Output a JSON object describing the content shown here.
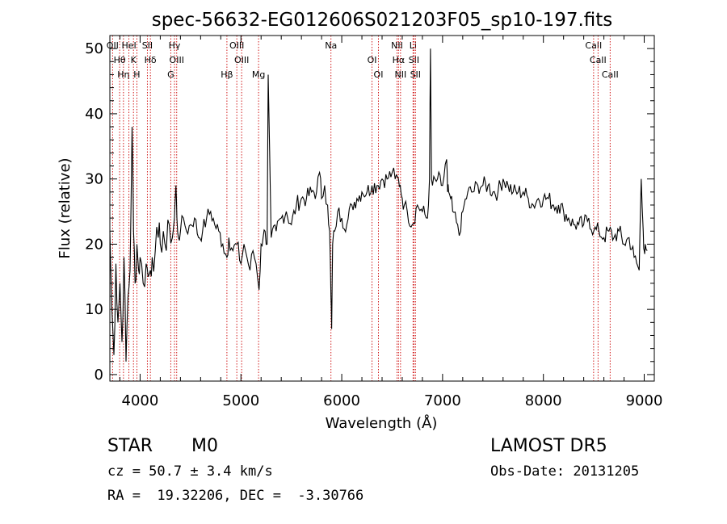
{
  "chart_data": {
    "type": "line",
    "title": "spec-56632-EG012606S021203F05_sp10-197.fits",
    "xlabel": "Wavelength (Å)",
    "ylabel": "Flux (relative)",
    "xlim": [
      3700,
      9100
    ],
    "ylim": [
      -1,
      52
    ],
    "x_ticks": [
      4000,
      5000,
      6000,
      7000,
      8000,
      9000
    ],
    "y_ticks": [
      0,
      10,
      20,
      30,
      40,
      50
    ],
    "grid": false,
    "line_color": "#000000",
    "marker_color": "#cc0000",
    "series": [
      {
        "x": [
          3700,
          3720,
          3740,
          3760,
          3780,
          3800,
          3820,
          3840,
          3860,
          3880,
          3900,
          3920,
          3935,
          3950,
          3968,
          3985,
          4000,
          4030,
          4060,
          4080,
          4102,
          4120,
          4150,
          4180,
          4200,
          4230,
          4260,
          4290,
          4320,
          4340,
          4355,
          4365,
          4380,
          4400,
          4430,
          4460,
          4500,
          4540,
          4580,
          4620,
          4660,
          4700,
          4740,
          4780,
          4820,
          4861,
          4880,
          4920,
          4960,
          5000,
          5030,
          5060,
          5090,
          5120,
          5150,
          5180,
          5200,
          5220,
          5240,
          5260,
          5270,
          5300,
          5350,
          5400,
          5450,
          5500,
          5550,
          5600,
          5650,
          5700,
          5750,
          5780,
          5800,
          5830,
          5860,
          5880,
          5893,
          5900,
          5910,
          5930,
          5960,
          6000,
          6050,
          6100,
          6150,
          6200,
          6250,
          6300,
          6350,
          6400,
          6450,
          6500,
          6530,
          6563,
          6580,
          6600,
          6620,
          6650,
          6700,
          6750,
          6800,
          6850,
          6870,
          6880,
          6890,
          6900,
          6950,
          7000,
          7040,
          7050,
          7060,
          7080,
          7100,
          7150,
          7180,
          7200,
          7250,
          7300,
          7350,
          7400,
          7450,
          7500,
          7550,
          7600,
          7650,
          7700,
          7750,
          7800,
          7850,
          7900,
          7950,
          8000,
          8050,
          8100,
          8150,
          8200,
          8250,
          8300,
          8350,
          8400,
          8450,
          8500,
          8550,
          8600,
          8650,
          8700,
          8750,
          8800,
          8850,
          8900,
          8950,
          8970,
          8990,
          9000,
          9010,
          9030
        ],
        "y": [
          22,
          10,
          3,
          17,
          8,
          14,
          5,
          18,
          2,
          12,
          16,
          38,
          22,
          14,
          20,
          16,
          18,
          14,
          17,
          15,
          16,
          18,
          19,
          21,
          20,
          22,
          19,
          23,
          21,
          24,
          29,
          24,
          21,
          22,
          24,
          22,
          23,
          24,
          21,
          22,
          24,
          25,
          23,
          22,
          20,
          18,
          21,
          19,
          20,
          17,
          20,
          18,
          16,
          19,
          17,
          13,
          20,
          21,
          22,
          20,
          46,
          21,
          22,
          24,
          25,
          23,
          26,
          27,
          27,
          28,
          28,
          31,
          27,
          29,
          26,
          22,
          12,
          7,
          20,
          22,
          25,
          24,
          23,
          26,
          27,
          28,
          28,
          29,
          29,
          30,
          30,
          31,
          30,
          30,
          29,
          27,
          26,
          25,
          23,
          26,
          25,
          24,
          30,
          50,
          30,
          29,
          30,
          29,
          33,
          28,
          28,
          27,
          25,
          23,
          22,
          25,
          28,
          28,
          29,
          29,
          29,
          28,
          28,
          30,
          29,
          28,
          28,
          28,
          27,
          26,
          27,
          27,
          27,
          26,
          26,
          25,
          24,
          23,
          23,
          23,
          24,
          22,
          22,
          21,
          22,
          21,
          22,
          20,
          21,
          18,
          16,
          30,
          22,
          19,
          20,
          19
        ]
      }
    ],
    "line_markers": [
      {
        "x": 3727,
        "label": "OII"
      },
      {
        "x": 3797,
        "label": "Hθ"
      },
      {
        "x": 3835,
        "label": "Hη"
      },
      {
        "x": 3889,
        "label": "HeI"
      },
      {
        "x": 3934,
        "label": "K"
      },
      {
        "x": 3968,
        "label": "H"
      },
      {
        "x": 4072,
        "label": "SII"
      },
      {
        "x": 4102,
        "label": "Hδ"
      },
      {
        "x": 4304,
        "label": "G"
      },
      {
        "x": 4341,
        "label": "Hγ"
      },
      {
        "x": 4363,
        "label": "OIII"
      },
      {
        "x": 4861,
        "label": "Hβ"
      },
      {
        "x": 4959,
        "label": "OIII"
      },
      {
        "x": 5007,
        "label": "OIII"
      },
      {
        "x": 5175,
        "label": "Mg"
      },
      {
        "x": 5893,
        "label": "Na"
      },
      {
        "x": 6300,
        "label": "OI"
      },
      {
        "x": 6364,
        "label": "OI"
      },
      {
        "x": 6548,
        "label": "NII"
      },
      {
        "x": 6563,
        "label": "Hα"
      },
      {
        "x": 6583,
        "label": "NII"
      },
      {
        "x": 6707,
        "label": "Li"
      },
      {
        "x": 6716,
        "label": "SII"
      },
      {
        "x": 6731,
        "label": "SII"
      },
      {
        "x": 8498,
        "label": "CaII"
      },
      {
        "x": 8542,
        "label": "CaII"
      },
      {
        "x": 8662,
        "label": "CaII"
      }
    ]
  },
  "info": {
    "class_label": "STAR",
    "subclass_label": "M0",
    "redshift_text": "cz = 50.7 ± 3.4 km/s",
    "coords_text": "RA =  19.32206, DEC =  -3.30766",
    "survey_label": "LAMOST DR5",
    "obs_date_text": "Obs-Date: 20131205"
  }
}
